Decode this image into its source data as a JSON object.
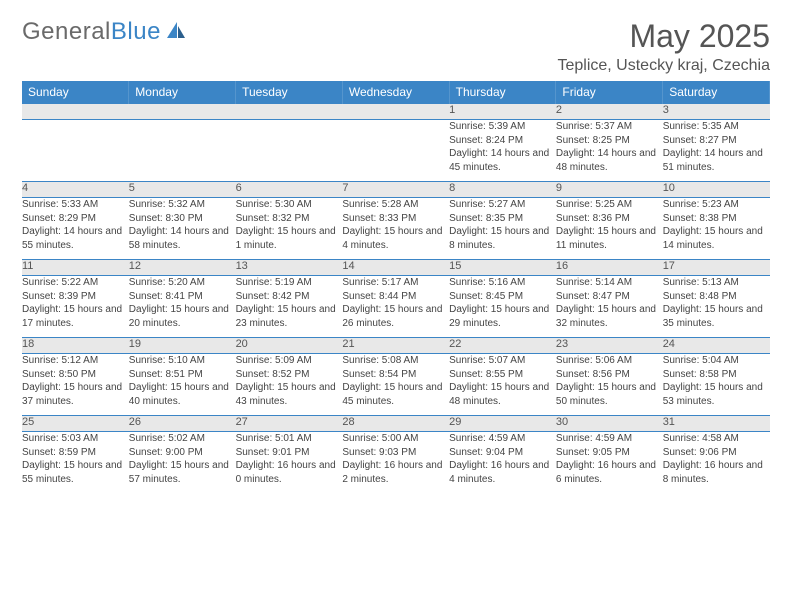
{
  "brand": {
    "part1": "General",
    "part2": "Blue"
  },
  "title": "May 2025",
  "location": "Teplice, Ustecky kraj, Czechia",
  "colors": {
    "header_bg": "#3b85c6",
    "header_text": "#ffffff",
    "daynum_bg": "#e8e8e8",
    "border": "#3b85c6",
    "text": "#444444",
    "logo_gray": "#6a6a6a",
    "logo_blue": "#3b85c6"
  },
  "day_headers": [
    "Sunday",
    "Monday",
    "Tuesday",
    "Wednesday",
    "Thursday",
    "Friday",
    "Saturday"
  ],
  "weeks": [
    [
      null,
      null,
      null,
      null,
      {
        "num": "1",
        "sunrise": "5:39 AM",
        "sunset": "8:24 PM",
        "daylight": "14 hours and 45 minutes."
      },
      {
        "num": "2",
        "sunrise": "5:37 AM",
        "sunset": "8:25 PM",
        "daylight": "14 hours and 48 minutes."
      },
      {
        "num": "3",
        "sunrise": "5:35 AM",
        "sunset": "8:27 PM",
        "daylight": "14 hours and 51 minutes."
      }
    ],
    [
      {
        "num": "4",
        "sunrise": "5:33 AM",
        "sunset": "8:29 PM",
        "daylight": "14 hours and 55 minutes."
      },
      {
        "num": "5",
        "sunrise": "5:32 AM",
        "sunset": "8:30 PM",
        "daylight": "14 hours and 58 minutes."
      },
      {
        "num": "6",
        "sunrise": "5:30 AM",
        "sunset": "8:32 PM",
        "daylight": "15 hours and 1 minute."
      },
      {
        "num": "7",
        "sunrise": "5:28 AM",
        "sunset": "8:33 PM",
        "daylight": "15 hours and 4 minutes."
      },
      {
        "num": "8",
        "sunrise": "5:27 AM",
        "sunset": "8:35 PM",
        "daylight": "15 hours and 8 minutes."
      },
      {
        "num": "9",
        "sunrise": "5:25 AM",
        "sunset": "8:36 PM",
        "daylight": "15 hours and 11 minutes."
      },
      {
        "num": "10",
        "sunrise": "5:23 AM",
        "sunset": "8:38 PM",
        "daylight": "15 hours and 14 minutes."
      }
    ],
    [
      {
        "num": "11",
        "sunrise": "5:22 AM",
        "sunset": "8:39 PM",
        "daylight": "15 hours and 17 minutes."
      },
      {
        "num": "12",
        "sunrise": "5:20 AM",
        "sunset": "8:41 PM",
        "daylight": "15 hours and 20 minutes."
      },
      {
        "num": "13",
        "sunrise": "5:19 AM",
        "sunset": "8:42 PM",
        "daylight": "15 hours and 23 minutes."
      },
      {
        "num": "14",
        "sunrise": "5:17 AM",
        "sunset": "8:44 PM",
        "daylight": "15 hours and 26 minutes."
      },
      {
        "num": "15",
        "sunrise": "5:16 AM",
        "sunset": "8:45 PM",
        "daylight": "15 hours and 29 minutes."
      },
      {
        "num": "16",
        "sunrise": "5:14 AM",
        "sunset": "8:47 PM",
        "daylight": "15 hours and 32 minutes."
      },
      {
        "num": "17",
        "sunrise": "5:13 AM",
        "sunset": "8:48 PM",
        "daylight": "15 hours and 35 minutes."
      }
    ],
    [
      {
        "num": "18",
        "sunrise": "5:12 AM",
        "sunset": "8:50 PM",
        "daylight": "15 hours and 37 minutes."
      },
      {
        "num": "19",
        "sunrise": "5:10 AM",
        "sunset": "8:51 PM",
        "daylight": "15 hours and 40 minutes."
      },
      {
        "num": "20",
        "sunrise": "5:09 AM",
        "sunset": "8:52 PM",
        "daylight": "15 hours and 43 minutes."
      },
      {
        "num": "21",
        "sunrise": "5:08 AM",
        "sunset": "8:54 PM",
        "daylight": "15 hours and 45 minutes."
      },
      {
        "num": "22",
        "sunrise": "5:07 AM",
        "sunset": "8:55 PM",
        "daylight": "15 hours and 48 minutes."
      },
      {
        "num": "23",
        "sunrise": "5:06 AM",
        "sunset": "8:56 PM",
        "daylight": "15 hours and 50 minutes."
      },
      {
        "num": "24",
        "sunrise": "5:04 AM",
        "sunset": "8:58 PM",
        "daylight": "15 hours and 53 minutes."
      }
    ],
    [
      {
        "num": "25",
        "sunrise": "5:03 AM",
        "sunset": "8:59 PM",
        "daylight": "15 hours and 55 minutes."
      },
      {
        "num": "26",
        "sunrise": "5:02 AM",
        "sunset": "9:00 PM",
        "daylight": "15 hours and 57 minutes."
      },
      {
        "num": "27",
        "sunrise": "5:01 AM",
        "sunset": "9:01 PM",
        "daylight": "16 hours and 0 minutes."
      },
      {
        "num": "28",
        "sunrise": "5:00 AM",
        "sunset": "9:03 PM",
        "daylight": "16 hours and 2 minutes."
      },
      {
        "num": "29",
        "sunrise": "4:59 AM",
        "sunset": "9:04 PM",
        "daylight": "16 hours and 4 minutes."
      },
      {
        "num": "30",
        "sunrise": "4:59 AM",
        "sunset": "9:05 PM",
        "daylight": "16 hours and 6 minutes."
      },
      {
        "num": "31",
        "sunrise": "4:58 AM",
        "sunset": "9:06 PM",
        "daylight": "16 hours and 8 minutes."
      }
    ]
  ],
  "labels": {
    "sunrise": "Sunrise: ",
    "sunset": "Sunset: ",
    "daylight": "Daylight: "
  }
}
